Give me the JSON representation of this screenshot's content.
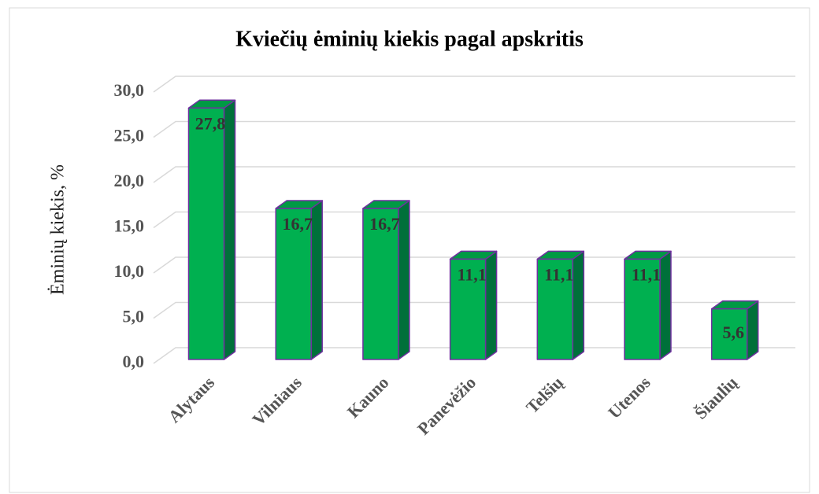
{
  "chart_data": {
    "type": "bar3d",
    "title": "Kviečių ėminių kiekis pagal apskritis",
    "y_label": "Ėminių kiekis, %",
    "categories": [
      "Alytaus",
      "Vilniaus",
      "Kauno",
      "Panevėžio",
      "Telšių",
      "Utenos",
      "Šiaulių"
    ],
    "values": [
      27.8,
      16.7,
      16.7,
      11.1,
      11.1,
      11.1,
      5.6
    ],
    "value_labels": [
      "27,8",
      "16,7",
      "16,7",
      "11,1",
      "11,1",
      "11,1",
      "5,6"
    ],
    "color": "#00b050",
    "ylim": [
      0,
      30
    ],
    "yticks": [
      {
        "value": 0,
        "label": "0,0"
      },
      {
        "value": 5,
        "label": "5,0"
      },
      {
        "value": 10,
        "label": "10,0"
      },
      {
        "value": 15,
        "label": "15,0"
      },
      {
        "value": 20,
        "label": "20,0"
      },
      {
        "value": 25,
        "label": "25,0"
      },
      {
        "value": 30,
        "label": "30,0"
      }
    ],
    "grid": true
  }
}
